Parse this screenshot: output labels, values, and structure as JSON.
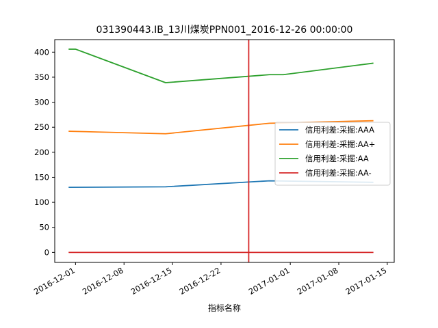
{
  "chart_data": {
    "type": "line",
    "title": "031390443.IB_13川煤炭PPN001_2016-12-26 00:00:00",
    "xlabel": "指标名称",
    "ylabel": "",
    "x_ticks": [
      "2016-12-01",
      "2016-12-08",
      "2016-12-15",
      "2016-12-22",
      "2017-01-01",
      "2017-01-08",
      "2017-01-15"
    ],
    "y_ticks": [
      0,
      50,
      100,
      150,
      200,
      250,
      300,
      350,
      400
    ],
    "xlim": [
      "2016-11-28",
      "2017-01-16"
    ],
    "ylim": [
      -20,
      425
    ],
    "grid": false,
    "legend_position": "center-right",
    "vline": {
      "x": "2016-12-26",
      "color": "#d62728"
    },
    "series": [
      {
        "name": "信用利差:采掘:AAA",
        "color": "#1f77b4",
        "x": [
          "2016-11-30",
          "2016-12-14",
          "2016-12-29",
          "2017-01-13"
        ],
        "values": [
          130,
          131,
          143,
          140
        ]
      },
      {
        "name": "信用利差:采掘:AA+",
        "color": "#ff7f0e",
        "x": [
          "2016-11-30",
          "2016-12-14",
          "2016-12-29",
          "2017-01-13"
        ],
        "values": [
          242,
          237,
          258,
          263
        ]
      },
      {
        "name": "信用利差:采掘:AA",
        "color": "#2ca02c",
        "x": [
          "2016-11-30",
          "2016-12-01",
          "2016-12-14",
          "2016-12-29",
          "2016-12-31",
          "2017-01-13"
        ],
        "values": [
          406,
          406,
          339,
          355,
          355,
          378
        ]
      },
      {
        "name": "信用利差:采掘:AA-",
        "color": "#d62728",
        "x": [
          "2016-11-30",
          "2016-12-14",
          "2016-12-29",
          "2017-01-13"
        ],
        "values": [
          0,
          0,
          0,
          0
        ]
      }
    ]
  }
}
